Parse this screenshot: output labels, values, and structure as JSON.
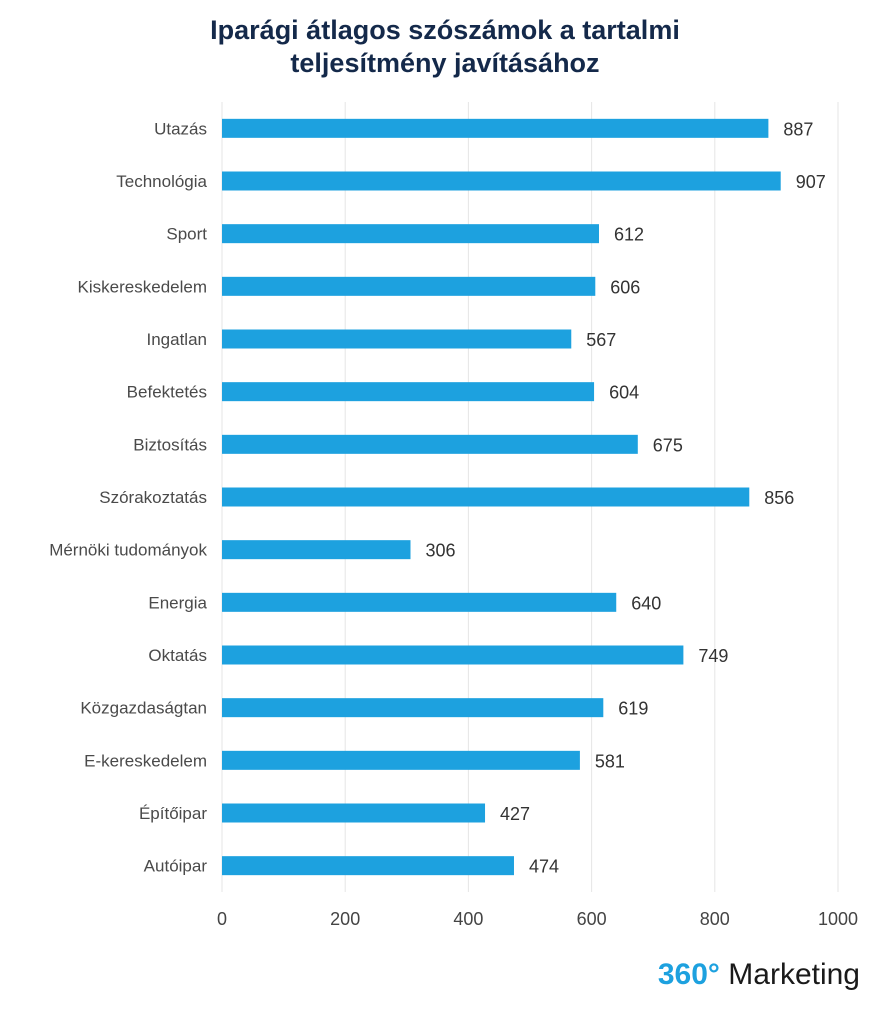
{
  "title_lines": [
    "Iparági átlagos szószámok a tartalmi",
    "teljesítmény javításához"
  ],
  "brand": {
    "number": "360°",
    "text": " Marketing"
  },
  "colors": {
    "bar": "#1da1df",
    "grid": "#e5e5e5",
    "title": "#14294a",
    "brand_accent": "#1da1df"
  },
  "chart_data": {
    "type": "bar",
    "orientation": "horizontal",
    "title": "Iparági átlagos szószámok a tartalmi teljesítmény javításához",
    "categories": [
      "Utazás",
      "Technológia",
      "Sport",
      "Kiskereskedelem",
      "Ingatlan",
      "Befektetés",
      "Biztosítás",
      "Szórakoztatás",
      "Mérnöki tudományok",
      "Energia",
      "Oktatás",
      "Közgazdaságtan",
      "E-kereskedelem",
      "Építőipar",
      "Autóipar"
    ],
    "values": [
      887,
      907,
      612,
      606,
      567,
      604,
      675,
      856,
      306,
      640,
      749,
      619,
      581,
      427,
      474
    ],
    "xlim": [
      0,
      1000
    ],
    "xticks": [
      0,
      200,
      400,
      600,
      800,
      1000
    ],
    "xlabel": "",
    "ylabel": "",
    "grid": "vertical",
    "data_labels": true
  }
}
